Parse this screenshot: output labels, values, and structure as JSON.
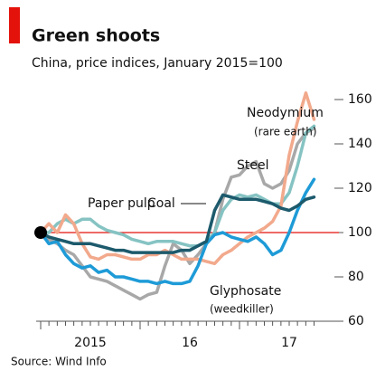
{
  "chart_data": {
    "type": "line",
    "title": "Green shoots",
    "subtitle": "China, price indices, January 2015=100",
    "source": "Source: Wind Info",
    "x": [
      2015,
      2015.083,
      2015.167,
      2015.25,
      2015.333,
      2015.417,
      2015.5,
      2015.583,
      2015.667,
      2015.75,
      2015.833,
      2015.917,
      2016,
      2016.083,
      2016.167,
      2016.25,
      2016.333,
      2016.417,
      2016.5,
      2016.583,
      2016.667,
      2016.75,
      2016.833,
      2016.917,
      2017,
      2017.083,
      2017.167,
      2017.25,
      2017.333,
      2017.417,
      2017.5,
      2017.583,
      2017.667,
      2017.75
    ],
    "series": [
      {
        "name": "Steel",
        "color": "#a8a8a8",
        "values": [
          100,
          97,
          95,
          92,
          90,
          85,
          80,
          79,
          78,
          76,
          74,
          72,
          70,
          72,
          73,
          85,
          95,
          92,
          86,
          90,
          95,
          100,
          115,
          125,
          126,
          130,
          132,
          122,
          120,
          122,
          128,
          140,
          145,
          147
        ]
      },
      {
        "name": "Paper pulp",
        "color": "#86c3c3",
        "values": [
          100,
          100,
          104,
          106,
          104,
          106,
          106,
          103,
          101,
          100,
          99,
          97,
          96,
          95,
          96,
          96,
          96,
          95,
          94,
          94,
          96,
          100,
          110,
          115,
          117,
          116,
          117,
          115,
          113,
          113,
          118,
          130,
          145,
          148
        ]
      },
      {
        "name": "Neodymium",
        "note": "(rare earth)",
        "color": "#f2a98c",
        "values": [
          100,
          104,
          100,
          108,
          104,
          95,
          89,
          88,
          90,
          90,
          89,
          88,
          88,
          90,
          90,
          92,
          90,
          88,
          88,
          88,
          87,
          86,
          90,
          92,
          95,
          98,
          100,
          102,
          105,
          112,
          135,
          150,
          163,
          151
        ]
      },
      {
        "name": "Glyphosate",
        "note": "(weedkiller)",
        "color": "#1e9bd7",
        "values": [
          100,
          95,
          96,
          90,
          86,
          84,
          85,
          82,
          83,
          80,
          80,
          79,
          78,
          78,
          77,
          78,
          77,
          77,
          78,
          85,
          95,
          99,
          100,
          98,
          97,
          96,
          98,
          95,
          90,
          92,
          100,
          110,
          118,
          124
        ]
      },
      {
        "name": "Coal",
        "color": "#1c5a6c",
        "values": [
          100,
          98,
          97,
          96,
          95,
          95,
          95,
          94,
          93,
          92,
          92,
          91,
          91,
          91,
          91,
          91,
          91,
          92,
          92,
          94,
          96,
          110,
          117,
          116,
          115,
          115,
          115,
          114,
          113,
          111,
          110,
          112,
          115,
          116
        ]
      }
    ],
    "reference_line": {
      "value": 100,
      "color": "#e3120b"
    },
    "xlim": [
      2015,
      2018
    ],
    "xticks": [
      {
        "value": 2015.5,
        "label": "2015"
      },
      {
        "value": 2016.5,
        "label": "16"
      },
      {
        "value": 2017.5,
        "label": "17"
      }
    ],
    "xminorticks": [
      2015,
      2015.083,
      2015.167,
      2015.25,
      2015.333,
      2015.417,
      2015.5,
      2015.583,
      2015.667,
      2015.75,
      2015.833,
      2015.917,
      2016,
      2016.083,
      2016.167,
      2016.25,
      2016.333,
      2016.417,
      2016.5,
      2016.583,
      2016.667,
      2016.75,
      2016.833,
      2016.917,
      2017,
      2017.083,
      2017.167,
      2017.25,
      2017.333,
      2017.417,
      2017.5,
      2017.583,
      2017.667,
      2017.75
    ],
    "ylim": [
      60,
      165
    ],
    "yticks": [
      60,
      80,
      100,
      120,
      140,
      160
    ],
    "grid": false
  }
}
